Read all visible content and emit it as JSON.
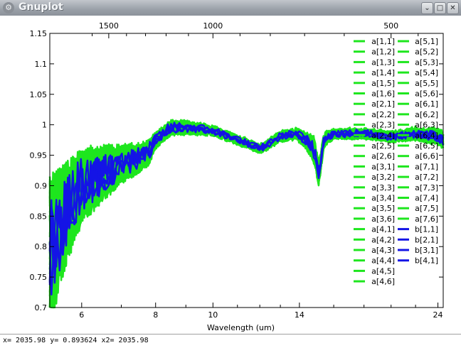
{
  "window": {
    "title": "Gnuplot",
    "icon": "gnuplot-app-icon"
  },
  "window_buttons": [
    "minimize-button",
    "maximize-button",
    "close-button"
  ],
  "status_line": "x= 2035.98 y= 0.893624 x2= 2035.98",
  "chart_data": {
    "type": "line",
    "title": "",
    "xlabel": "Wavelength (um)",
    "ylabel": "",
    "x_scale": "log",
    "xlim": [
      5.3,
      24.5
    ],
    "ylim": [
      0.7,
      1.15
    ],
    "x_ticks": [
      6,
      8,
      10,
      14,
      24
    ],
    "x_tick_labels": [
      "6",
      "8",
      "10",
      "14",
      "24"
    ],
    "x_minor_ticks": [
      7,
      9,
      11,
      12,
      13,
      16,
      18,
      20,
      22
    ],
    "y_ticks": [
      0.7,
      0.75,
      0.8,
      0.85,
      0.9,
      0.95,
      1.0,
      1.05,
      1.1,
      1.15
    ],
    "y_tick_labels": [
      "0.7",
      "0.75",
      "0.8",
      "0.85",
      "0.9",
      "0.95",
      "1",
      "1.05",
      "1.1",
      "1.15"
    ],
    "x2_axis": {
      "label": "",
      "note": "wavenumber axis, x2 = 10000 / x",
      "ticks": [
        1500,
        1000,
        500
      ],
      "tick_labels": [
        "1500",
        "1000",
        "500"
      ],
      "minor_ticks": [
        1600,
        1400,
        1300,
        1200,
        1100,
        900,
        800,
        700,
        600,
        450
      ]
    },
    "grid": false,
    "legend_placement": "top-right, two columns",
    "legend_order": "column-major",
    "colors": {
      "a_series": "#1ee61e",
      "b_series": "#1414e6"
    },
    "shape": {
      "x": [
        5.35,
        5.6,
        6.0,
        6.5,
        7.0,
        7.5,
        7.8,
        8.0,
        8.5,
        9.0,
        10.0,
        11.0,
        12.0,
        13.0,
        13.8,
        14.3,
        14.8,
        15.1,
        15.4,
        16.0,
        18.0,
        20.0,
        22.0,
        24.0,
        24.5
      ],
      "base": [
        0.8,
        0.85,
        0.9,
        0.92,
        0.935,
        0.945,
        0.955,
        0.975,
        0.995,
        0.995,
        0.99,
        0.975,
        0.96,
        0.98,
        0.985,
        0.975,
        0.96,
        0.92,
        0.975,
        0.985,
        0.985,
        0.98,
        0.985,
        0.98,
        0.975
      ],
      "noise": [
        0.12,
        0.09,
        0.06,
        0.045,
        0.03,
        0.022,
        0.018,
        0.012,
        0.01,
        0.008,
        0.006,
        0.005,
        0.005,
        0.006,
        0.006,
        0.01,
        0.02,
        0.02,
        0.01,
        0.006,
        0.006,
        0.006,
        0.008,
        0.012,
        0.012
      ]
    },
    "series": [
      {
        "name": "a[1,1]",
        "color": "#1ee61e"
      },
      {
        "name": "a[1,2]",
        "color": "#1ee61e"
      },
      {
        "name": "a[1,3]",
        "color": "#1ee61e"
      },
      {
        "name": "a[1,4]",
        "color": "#1ee61e"
      },
      {
        "name": "a[1,5]",
        "color": "#1ee61e"
      },
      {
        "name": "a[1,6]",
        "color": "#1ee61e"
      },
      {
        "name": "a[2,1]",
        "color": "#1ee61e"
      },
      {
        "name": "a[2,2]",
        "color": "#1ee61e"
      },
      {
        "name": "a[2,3]",
        "color": "#1ee61e"
      },
      {
        "name": "a[2,4]",
        "color": "#1ee61e"
      },
      {
        "name": "a[2,5]",
        "color": "#1ee61e"
      },
      {
        "name": "a[2,6]",
        "color": "#1ee61e"
      },
      {
        "name": "a[3,1]",
        "color": "#1ee61e"
      },
      {
        "name": "a[3,2]",
        "color": "#1ee61e"
      },
      {
        "name": "a[3,3]",
        "color": "#1ee61e"
      },
      {
        "name": "a[3,4]",
        "color": "#1ee61e"
      },
      {
        "name": "a[3,5]",
        "color": "#1ee61e"
      },
      {
        "name": "a[3,6]",
        "color": "#1ee61e"
      },
      {
        "name": "a[4,1]",
        "color": "#1ee61e"
      },
      {
        "name": "a[4,2]",
        "color": "#1ee61e"
      },
      {
        "name": "a[4,3]",
        "color": "#1ee61e"
      },
      {
        "name": "a[4,4]",
        "color": "#1ee61e"
      },
      {
        "name": "a[4,5]",
        "color": "#1ee61e"
      },
      {
        "name": "a[4,6]",
        "color": "#1ee61e"
      },
      {
        "name": "a[5,1]",
        "color": "#1ee61e"
      },
      {
        "name": "a[5,2]",
        "color": "#1ee61e"
      },
      {
        "name": "a[5,3]",
        "color": "#1ee61e"
      },
      {
        "name": "a[5,4]",
        "color": "#1ee61e"
      },
      {
        "name": "a[5,5]",
        "color": "#1ee61e"
      },
      {
        "name": "a[5,6]",
        "color": "#1ee61e"
      },
      {
        "name": "a[6,1]",
        "color": "#1ee61e"
      },
      {
        "name": "a[6,2]",
        "color": "#1ee61e"
      },
      {
        "name": "a[6,3]",
        "color": "#1ee61e"
      },
      {
        "name": "a[6,4]",
        "color": "#1ee61e"
      },
      {
        "name": "a[6,5]",
        "color": "#1ee61e"
      },
      {
        "name": "a[6,6]",
        "color": "#1ee61e"
      },
      {
        "name": "a[7,1]",
        "color": "#1ee61e"
      },
      {
        "name": "a[7,2]",
        "color": "#1ee61e"
      },
      {
        "name": "a[7,3]",
        "color": "#1ee61e"
      },
      {
        "name": "a[7,4]",
        "color": "#1ee61e"
      },
      {
        "name": "a[7,5]",
        "color": "#1ee61e"
      },
      {
        "name": "a[7,6]",
        "color": "#1ee61e"
      },
      {
        "name": "b[1,1]",
        "color": "#1414e6"
      },
      {
        "name": "b[2,1]",
        "color": "#1414e6"
      },
      {
        "name": "b[3,1]",
        "color": "#1414e6"
      },
      {
        "name": "b[4,1]",
        "color": "#1414e6"
      }
    ]
  }
}
